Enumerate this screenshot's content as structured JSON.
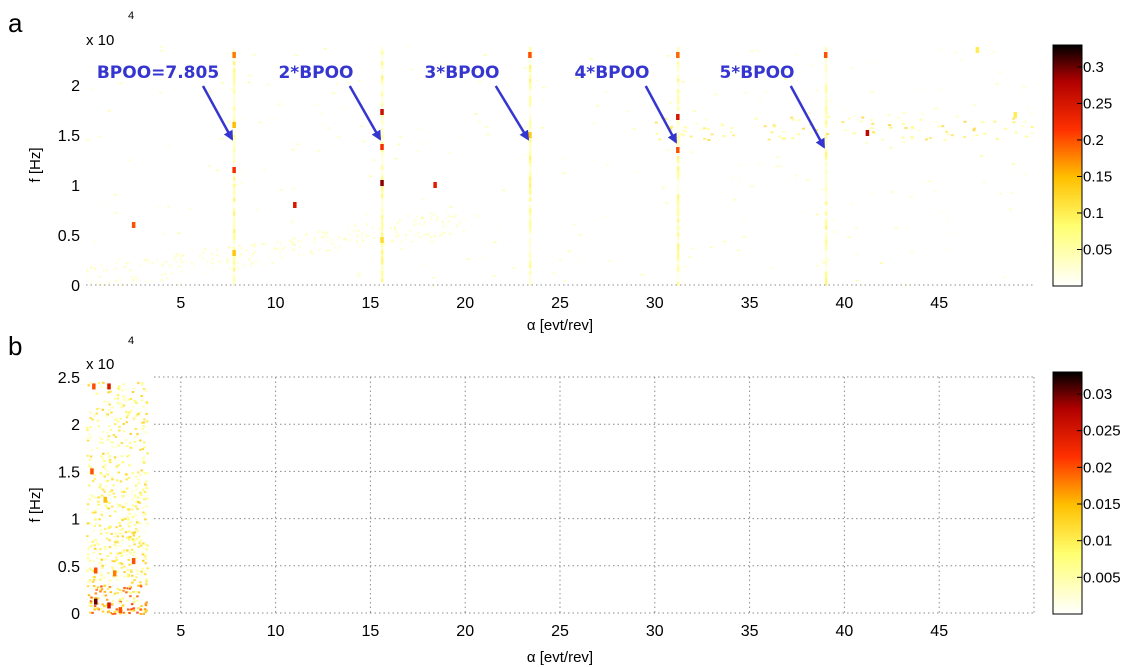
{
  "colors": {
    "annotation": "#3535d0",
    "background": "#ffffff",
    "colormap": "hot (reversed)"
  },
  "chart_data": [
    {
      "panel": "a",
      "type": "heatmap",
      "xlabel": "α [evt/rev]",
      "ylabel": "f [Hz]",
      "y_multiplier": "x 10",
      "y_exponent": "4",
      "xlim": [
        0,
        50
      ],
      "ylim": [
        0,
        24000
      ],
      "x_ticks": [
        5,
        10,
        15,
        20,
        25,
        30,
        35,
        40,
        45
      ],
      "y_ticks": [
        0,
        0.5,
        1,
        1.5,
        2
      ],
      "grid": false,
      "colorbar": {
        "range": [
          0,
          0.33
        ],
        "ticks": [
          "0.05",
          "0.1",
          "0.15",
          "0.2",
          "0.25",
          "0.3"
        ]
      },
      "annotations": [
        {
          "text": "BPOO=7.805",
          "x": 7.805,
          "y": 15800
        },
        {
          "text": "2*BPOO",
          "x": 15.61,
          "y": 15800
        },
        {
          "text": "3*BPOO",
          "x": 23.415,
          "y": 15800
        },
        {
          "text": "4*BPOO",
          "x": 31.22,
          "y": 15500
        },
        {
          "text": "5*BPOO",
          "x": 39.025,
          "y": 15000
        }
      ],
      "hotspots": [
        {
          "x": 2.5,
          "y": 6000,
          "v": 0.2
        },
        {
          "x": 7.8,
          "y": 16000,
          "v": 0.15
        },
        {
          "x": 7.8,
          "y": 11500,
          "v": 0.22
        },
        {
          "x": 7.8,
          "y": 23000,
          "v": 0.18
        },
        {
          "x": 7.8,
          "y": 3200,
          "v": 0.14
        },
        {
          "x": 11.0,
          "y": 8000,
          "v": 0.25
        },
        {
          "x": 15.6,
          "y": 17300,
          "v": 0.26
        },
        {
          "x": 15.6,
          "y": 13800,
          "v": 0.22
        },
        {
          "x": 15.6,
          "y": 10200,
          "v": 0.29
        },
        {
          "x": 15.6,
          "y": 4500,
          "v": 0.12
        },
        {
          "x": 18.4,
          "y": 10000,
          "v": 0.24
        },
        {
          "x": 23.4,
          "y": 23000,
          "v": 0.2
        },
        {
          "x": 23.4,
          "y": 15000,
          "v": 0.14
        },
        {
          "x": 31.2,
          "y": 23000,
          "v": 0.19
        },
        {
          "x": 31.2,
          "y": 16800,
          "v": 0.25
        },
        {
          "x": 31.2,
          "y": 13500,
          "v": 0.2
        },
        {
          "x": 39.0,
          "y": 23000,
          "v": 0.2
        },
        {
          "x": 41.2,
          "y": 15200,
          "v": 0.27
        },
        {
          "x": 47.0,
          "y": 23500,
          "v": 0.1
        },
        {
          "x": 49.0,
          "y": 17000,
          "v": 0.1
        }
      ]
    },
    {
      "panel": "b",
      "type": "heatmap",
      "xlabel": "α [evt/rev]",
      "ylabel": "f [Hz]",
      "y_multiplier": "x 10",
      "y_exponent": "4",
      "xlim": [
        0,
        50
      ],
      "ylim": [
        0,
        25000
      ],
      "x_ticks": [
        5,
        10,
        15,
        20,
        25,
        30,
        35,
        40,
        45
      ],
      "y_ticks": [
        0,
        0.5,
        1,
        1.5,
        2,
        2.5
      ],
      "grid": true,
      "colorbar": {
        "range": [
          0,
          0.033
        ],
        "ticks": [
          "0.005",
          "0.01",
          "0.015",
          "0.02",
          "0.025",
          "0.03"
        ]
      },
      "hotspots": [
        {
          "x": 0.4,
          "y": 24000,
          "v": 0.02
        },
        {
          "x": 1.2,
          "y": 24000,
          "v": 0.025
        },
        {
          "x": 0.3,
          "y": 15000,
          "v": 0.02
        },
        {
          "x": 1.0,
          "y": 12000,
          "v": 0.015
        },
        {
          "x": 0.5,
          "y": 4500,
          "v": 0.02
        },
        {
          "x": 1.5,
          "y": 4200,
          "v": 0.018
        },
        {
          "x": 2.5,
          "y": 5500,
          "v": 0.02
        },
        {
          "x": 0.5,
          "y": 1200,
          "v": 0.03
        },
        {
          "x": 1.2,
          "y": 800,
          "v": 0.025
        },
        {
          "x": 1.8,
          "y": 300,
          "v": 0.02
        }
      ]
    }
  ]
}
